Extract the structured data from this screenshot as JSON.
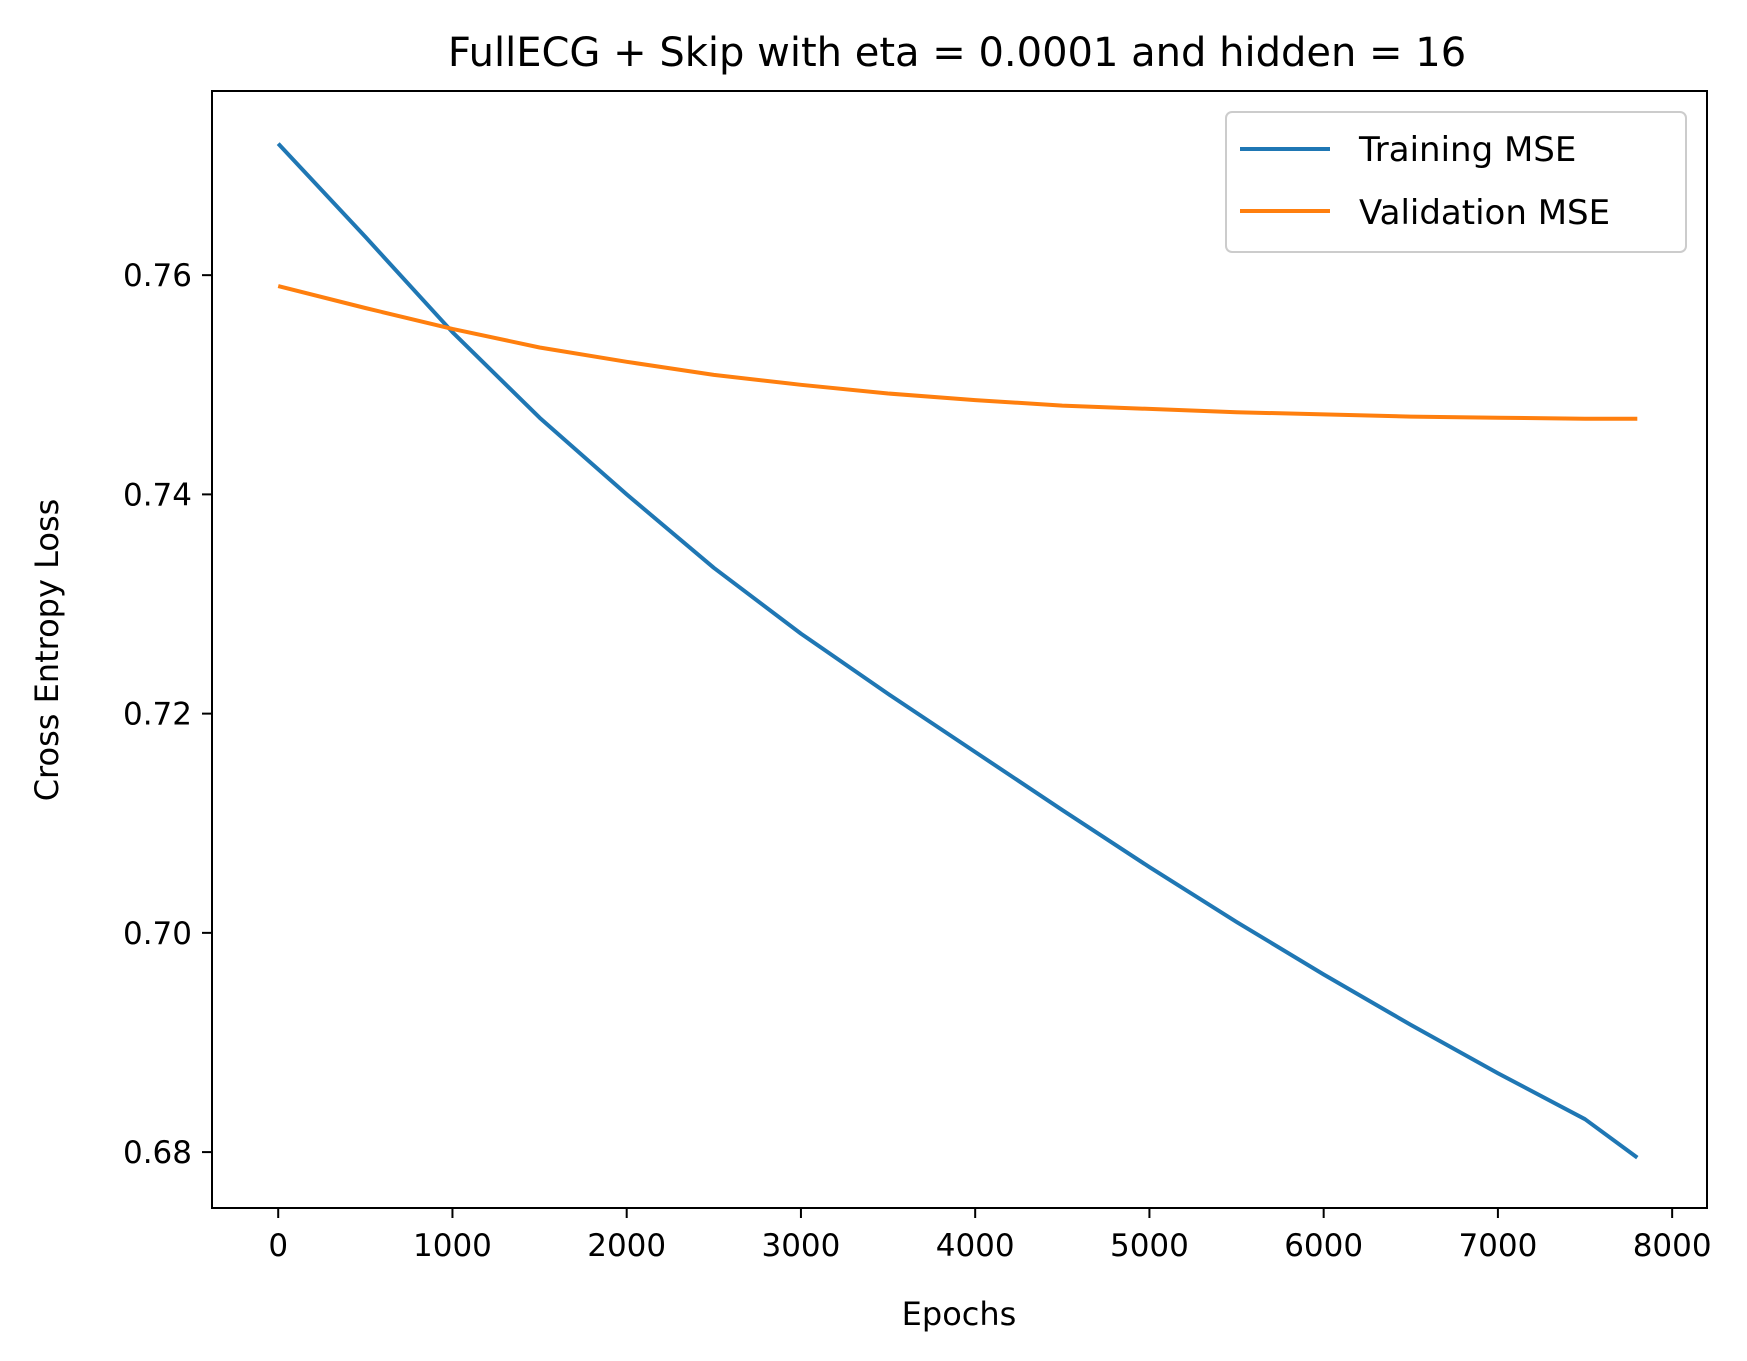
{
  "chart_data": {
    "type": "line",
    "title": "FullECG + Skip with eta = 0.0001 and hidden = 16",
    "xlabel": "Epochs",
    "ylabel": "Cross Entropy Loss",
    "xlim": [
      -380,
      8200
    ],
    "ylim": [
      0.6749,
      0.7768
    ],
    "xticks": [
      0,
      1000,
      2000,
      3000,
      4000,
      5000,
      6000,
      7000,
      8000
    ],
    "xtick_labels": [
      "0",
      "1000",
      "2000",
      "3000",
      "4000",
      "5000",
      "6000",
      "7000",
      "8000"
    ],
    "yticks": [
      0.68,
      0.7,
      0.72,
      0.74,
      0.76
    ],
    "ytick_labels": [
      "0.68",
      "0.70",
      "0.72",
      "0.74",
      "0.76"
    ],
    "grid": false,
    "legend_position": "top-right",
    "series": [
      {
        "name": "Training MSE",
        "color": "#1f77b4",
        "x": [
          0,
          500,
          1000,
          1500,
          2000,
          2500,
          3000,
          3500,
          4000,
          4500,
          5000,
          5500,
          6000,
          6500,
          7000,
          7500,
          7800
        ],
        "y": [
          0.772,
          0.7635,
          0.7548,
          0.747,
          0.74,
          0.7333,
          0.7273,
          0.7218,
          0.7165,
          0.7112,
          0.706,
          0.701,
          0.6962,
          0.6916,
          0.6872,
          0.683,
          0.6795
        ]
      },
      {
        "name": "Validation MSE",
        "color": "#ff7f0e",
        "x": [
          0,
          500,
          1000,
          1500,
          2000,
          2500,
          3000,
          3500,
          4000,
          4500,
          5000,
          5500,
          6000,
          6500,
          7000,
          7500,
          7800
        ],
        "y": [
          0.759,
          0.757,
          0.7551,
          0.7534,
          0.7521,
          0.7509,
          0.75,
          0.7492,
          0.7486,
          0.7481,
          0.7478,
          0.7475,
          0.7473,
          0.7471,
          0.747,
          0.7469,
          0.7469
        ]
      }
    ]
  }
}
